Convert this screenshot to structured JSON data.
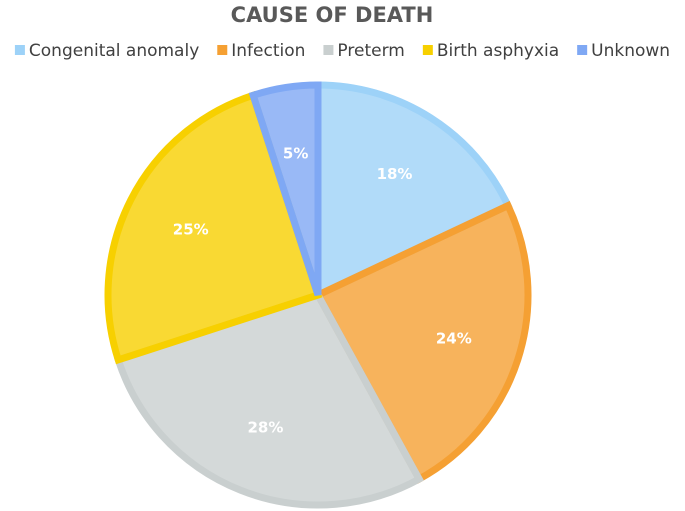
{
  "chart_data": {
    "type": "pie",
    "title": "CAUSE OF DEATH",
    "categories": [
      "Congenital anomaly",
      "Infection",
      "Preterm",
      "Birth asphyxia",
      "Unknown"
    ],
    "values": [
      18,
      24,
      28,
      25,
      5
    ],
    "value_labels": [
      "18%",
      "24%",
      "28%",
      "25%",
      "5%"
    ],
    "colors": [
      "#9dd2f8",
      "#f5a033",
      "#c9cfcf",
      "#f7d000",
      "#7fa8f4"
    ],
    "legend": "top"
  }
}
